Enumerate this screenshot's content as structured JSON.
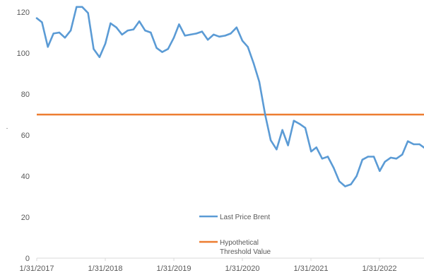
{
  "chart_data": {
    "type": "line",
    "title": "",
    "xlabel": "",
    "ylabel": "",
    "ylim": [
      0,
      120
    ],
    "y_ticks": [
      0,
      20,
      40,
      60,
      80,
      100,
      120
    ],
    "x_tick_labels": [
      "1/31/2017",
      "1/31/2018",
      "1/31/2019",
      "1/31/2020",
      "1/31/2021",
      "1/31/2022"
    ],
    "grid": false,
    "legend_placement": "bottom-center",
    "series": [
      {
        "name": "Last Price Brent",
        "color": "#5B9BD5",
        "points": [
          [
            "2017-01-31",
            117
          ],
          [
            "2017-02-28",
            115
          ],
          [
            "2017-03-31",
            103
          ],
          [
            "2017-04-30",
            109.5
          ],
          [
            "2017-05-31",
            110
          ],
          [
            "2017-06-30",
            107.5
          ],
          [
            "2017-07-31",
            111
          ],
          [
            "2017-08-31",
            122.5
          ],
          [
            "2017-09-30",
            122.5
          ],
          [
            "2017-10-31",
            119.5
          ],
          [
            "2017-11-30",
            102
          ],
          [
            "2017-12-31",
            98
          ],
          [
            "2018-01-31",
            104.5
          ],
          [
            "2018-02-28",
            114.5
          ],
          [
            "2018-03-31",
            112.5
          ],
          [
            "2018-04-30",
            109
          ],
          [
            "2018-05-31",
            111
          ],
          [
            "2018-06-30",
            111.5
          ],
          [
            "2018-07-31",
            115.5
          ],
          [
            "2018-08-31",
            111
          ],
          [
            "2018-09-30",
            110
          ],
          [
            "2018-10-31",
            102.5
          ],
          [
            "2018-11-30",
            100.5
          ],
          [
            "2018-12-31",
            102
          ],
          [
            "2019-01-31",
            107.5
          ],
          [
            "2019-02-28",
            114
          ],
          [
            "2019-03-31",
            108.5
          ],
          [
            "2019-04-30",
            109
          ],
          [
            "2019-05-31",
            109.5
          ],
          [
            "2019-06-30",
            110.5
          ],
          [
            "2019-07-31",
            106.5
          ],
          [
            "2019-08-31",
            109
          ],
          [
            "2019-09-30",
            108
          ],
          [
            "2019-10-31",
            108.5
          ],
          [
            "2019-11-30",
            109.5
          ],
          [
            "2019-12-31",
            112.5
          ],
          [
            "2020-01-31",
            106
          ],
          [
            "2020-02-29",
            103
          ],
          [
            "2020-03-31",
            95
          ],
          [
            "2020-04-30",
            86
          ],
          [
            "2020-05-31",
            70
          ],
          [
            "2020-06-30",
            57.5
          ],
          [
            "2020-07-31",
            53
          ],
          [
            "2020-08-31",
            62.5
          ],
          [
            "2020-09-30",
            55
          ],
          [
            "2020-10-31",
            67
          ],
          [
            "2020-11-30",
            65.5
          ],
          [
            "2020-12-31",
            63.5
          ],
          [
            "2021-01-31",
            52
          ],
          [
            "2021-02-28",
            54
          ],
          [
            "2021-03-31",
            48.5
          ],
          [
            "2021-04-30",
            49.5
          ],
          [
            "2021-05-31",
            44
          ],
          [
            "2021-06-30",
            37.5
          ],
          [
            "2021-07-31",
            35
          ],
          [
            "2021-08-31",
            36
          ],
          [
            "2021-09-30",
            40
          ],
          [
            "2021-10-31",
            48
          ],
          [
            "2021-11-30",
            49.5
          ],
          [
            "2021-12-31",
            49.5
          ],
          [
            "2022-01-31",
            42.5
          ],
          [
            "2022-02-28",
            47
          ],
          [
            "2022-03-31",
            49
          ],
          [
            "2022-04-30",
            48.5
          ],
          [
            "2022-05-31",
            50.5
          ],
          [
            "2022-06-30",
            57
          ],
          [
            "2022-07-31",
            55.5
          ],
          [
            "2022-08-31",
            55.5
          ],
          [
            "2022-09-30",
            53.5
          ]
        ]
      },
      {
        "name": "Hypothetical Threshold Value",
        "legend_lines": [
          "Hypothetical",
          "Threshold Value"
        ],
        "color": "#ED7D31",
        "constant_value": 70
      }
    ]
  }
}
